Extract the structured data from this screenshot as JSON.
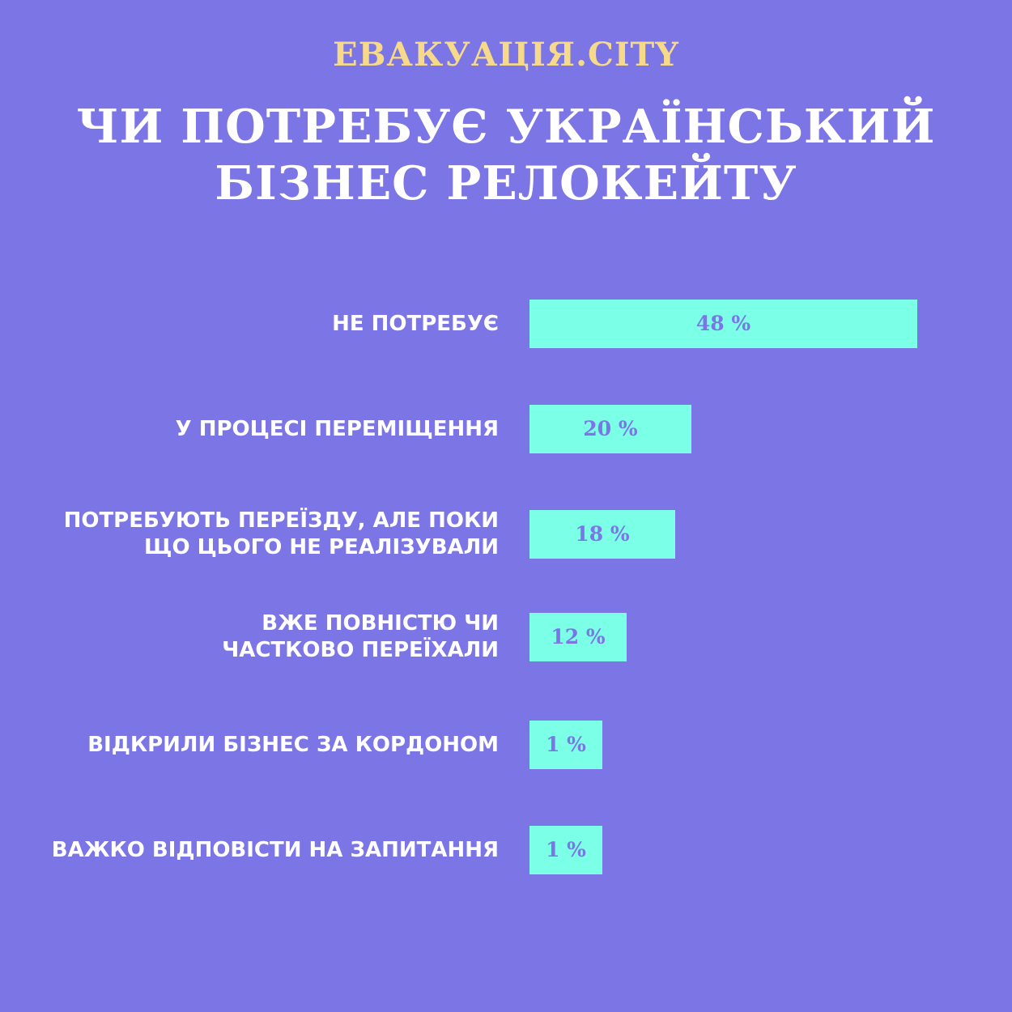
{
  "brand": "ЕВАКУАЦІЯ.CITY",
  "title_line1": "ЧИ ПОТРЕБУЄ УКРАЇНСЬКИЙ",
  "title_line2": "БІЗНЕС РЕЛОКЕЙТУ",
  "colors": {
    "background": "#7b75e6",
    "bar": "#7bffe6",
    "brand": "#f7d98a",
    "text": "#ffffff"
  },
  "chart_data": {
    "type": "bar",
    "orientation": "horizontal",
    "title": "ЧИ ПОТРЕБУЄ УКРАЇНСЬКИЙ БІЗНЕС РЕЛОКЕЙТУ",
    "unit": "%",
    "categories": [
      "НЕ ПОТРЕБУЄ",
      "У ПРОЦЕСІ ПЕРЕМІЩЕННЯ",
      "ПОТРЕБУЮТЬ ПЕРЕЇЗДУ, АЛЕ ПОКИ ЩО ЦЬОГО НЕ РЕАЛІЗУВАЛИ",
      "ВЖЕ ПОВНІСТЮ ЧИ ЧАСТКОВО ПЕРЕЇХАЛИ",
      "ВІДКРИЛИ БІЗНЕС ЗА КОРДОНОМ",
      "ВАЖКО ВІДПОВІСТИ НА ЗАПИТАННЯ"
    ],
    "category_lines": [
      [
        "НЕ ПОТРЕБУЄ"
      ],
      [
        "У ПРОЦЕСІ ПЕРЕМІЩЕННЯ"
      ],
      [
        "ПОТРЕБУЮТЬ ПЕРЕЇЗДУ, АЛЕ ПОКИ",
        "ЩО ЦЬОГО НЕ РЕАЛІЗУВАЛИ"
      ],
      [
        "ВЖЕ ПОВНІСТЮ ЧИ",
        "ЧАСТКОВО ПЕРЕЇХАЛИ"
      ],
      [
        "ВІДКРИЛИ БІЗНЕС ЗА КОРДОНОМ"
      ],
      [
        "ВАЖКО ВІДПОВІСТИ НА ЗАПИТАННЯ"
      ]
    ],
    "values": [
      48,
      20,
      18,
      12,
      1,
      1
    ],
    "value_labels": [
      "48 %",
      "20 %",
      "18 %",
      "12 %",
      "1 %",
      "1 %"
    ],
    "xlim": [
      0,
      48
    ],
    "grid": false,
    "legend": "none"
  }
}
